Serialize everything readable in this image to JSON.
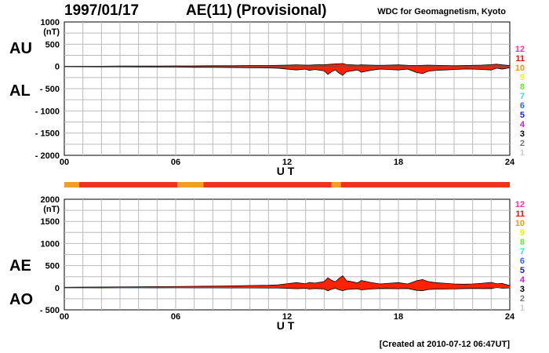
{
  "header": {
    "date": "1997/01/17",
    "index": "AE(11) (Provisional)",
    "credit": "WDC for Geomagnetism, Kyoto"
  },
  "footer": {
    "created": "[Created at 2010-07-12 06:47UT]"
  },
  "colors": {
    "fill": "#ff2200",
    "trace": "#000000",
    "grid": "#bbbbbb",
    "status_bar": "#ee3322",
    "status_orange": "#f0a020"
  },
  "station_legend": [
    {
      "label": "12",
      "color": "#ff3399"
    },
    {
      "label": "11",
      "color": "#ee1111"
    },
    {
      "label": "10",
      "color": "#ff9900"
    },
    {
      "label": "9",
      "color": "#eeee22"
    },
    {
      "label": "8",
      "color": "#66ee33"
    },
    {
      "label": "7",
      "color": "#33dddd"
    },
    {
      "label": "6",
      "color": "#3366ff"
    },
    {
      "label": "5",
      "color": "#2222bb"
    },
    {
      "label": "4",
      "color": "#cc22cc"
    },
    {
      "label": "3",
      "color": "#000000"
    },
    {
      "label": "2",
      "color": "#777777"
    },
    {
      "label": "1",
      "color": "#cccccc"
    }
  ],
  "status_bar": {
    "segments": [
      {
        "start": 0,
        "end": 0.8,
        "color": "#f0a020"
      },
      {
        "start": 0.8,
        "end": 6.1,
        "color": "#ee3322"
      },
      {
        "start": 6.1,
        "end": 7.5,
        "color": "#f0a020"
      },
      {
        "start": 7.5,
        "end": 14.4,
        "color": "#ee3322"
      },
      {
        "start": 14.4,
        "end": 14.9,
        "color": "#f0a020"
      },
      {
        "start": 14.9,
        "end": 24,
        "color": "#ee3322"
      }
    ]
  },
  "chart_data": [
    {
      "type": "area",
      "name": "AU/AL",
      "series_labels": [
        "AU",
        "AL"
      ],
      "units": "(nT)",
      "xlabel": "U T",
      "xlim": [
        0,
        24
      ],
      "ylim": [
        -2000,
        1000
      ],
      "x_ticks": [
        "00",
        "06",
        "12",
        "18",
        "24"
      ],
      "y_ticks": [
        "1000",
        "500",
        "0",
        "- 500",
        "- 1000",
        "- 1500",
        "- 2000"
      ],
      "x": [
        0,
        1,
        2,
        3,
        4,
        5,
        6,
        7,
        8,
        9,
        10,
        11,
        11.5,
        12,
        12.5,
        13,
        13.2,
        13.5,
        14,
        14.2,
        14.4,
        14.6,
        14.8,
        15,
        15.2,
        15.5,
        15.8,
        16,
        16.5,
        17,
        17.5,
        18,
        18.5,
        19,
        19.3,
        19.6,
        20,
        20.5,
        21,
        21.5,
        22,
        22.5,
        23,
        23.3,
        23.6,
        24
      ],
      "au": [
        5,
        5,
        5,
        8,
        8,
        10,
        12,
        12,
        15,
        15,
        20,
        20,
        25,
        30,
        35,
        30,
        30,
        35,
        40,
        45,
        50,
        55,
        60,
        65,
        40,
        35,
        30,
        35,
        30,
        25,
        30,
        35,
        25,
        20,
        25,
        30,
        25,
        20,
        15,
        20,
        25,
        30,
        40,
        50,
        35,
        20
      ],
      "al": [
        -5,
        -8,
        -10,
        -10,
        -12,
        -15,
        -15,
        -20,
        -20,
        -25,
        -30,
        -35,
        -40,
        -60,
        -80,
        -60,
        -90,
        -70,
        -100,
        -180,
        -120,
        -80,
        -150,
        -200,
        -120,
        -100,
        -80,
        -130,
        -90,
        -60,
        -70,
        -80,
        -60,
        -140,
        -160,
        -110,
        -90,
        -80,
        -70,
        -60,
        -60,
        -70,
        -80,
        -40,
        -60,
        -30
      ]
    },
    {
      "type": "area",
      "name": "AE/AO",
      "series_labels": [
        "AE",
        "AO"
      ],
      "units": "(nT)",
      "xlabel": "U T",
      "xlim": [
        0,
        24
      ],
      "ylim": [
        -500,
        2000
      ],
      "x_ticks": [
        "00",
        "06",
        "12",
        "18",
        "24"
      ],
      "y_ticks": [
        "2000",
        "1500",
        "1000",
        "500",
        "0",
        "- 500"
      ],
      "x": [
        0,
        1,
        2,
        3,
        4,
        5,
        6,
        7,
        8,
        9,
        10,
        11,
        11.5,
        12,
        12.5,
        13,
        13.2,
        13.5,
        14,
        14.2,
        14.4,
        14.6,
        14.8,
        15,
        15.2,
        15.5,
        15.8,
        16,
        16.5,
        17,
        17.5,
        18,
        18.5,
        19,
        19.3,
        19.6,
        20,
        20.5,
        21,
        21.5,
        22,
        22.5,
        23,
        23.3,
        23.6,
        24
      ],
      "ae": [
        10,
        13,
        15,
        18,
        20,
        25,
        27,
        32,
        35,
        40,
        50,
        55,
        65,
        90,
        115,
        90,
        120,
        105,
        140,
        225,
        170,
        135,
        210,
        270,
        160,
        135,
        110,
        165,
        120,
        85,
        100,
        115,
        85,
        160,
        185,
        140,
        115,
        100,
        85,
        80,
        85,
        100,
        120,
        90,
        95,
        50
      ],
      "ao": [
        0,
        -2,
        -3,
        -1,
        -2,
        -3,
        -2,
        -4,
        -3,
        -5,
        -5,
        -8,
        -8,
        -15,
        -23,
        -15,
        -30,
        -18,
        -30,
        -68,
        -35,
        -13,
        -45,
        -68,
        -40,
        -33,
        -25,
        -48,
        -30,
        -18,
        -20,
        -23,
        -18,
        -60,
        -68,
        -40,
        -33,
        -30,
        -28,
        -20,
        -18,
        -20,
        -20,
        5,
        -13,
        -5
      ]
    }
  ]
}
